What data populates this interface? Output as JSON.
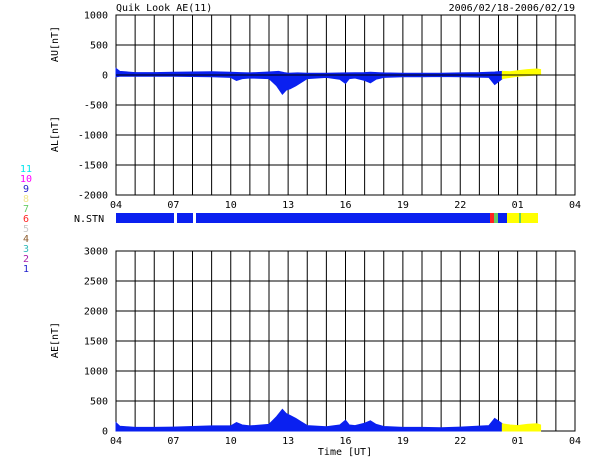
{
  "title": "Quik Look AE(11)",
  "date_range": "2006/02/18-2006/02/19",
  "station_label": "N.STN",
  "xlabel": "Time [UT]",
  "legend": {
    "entries": [
      {
        "label": "11",
        "color": "#00e5ee"
      },
      {
        "label": "10",
        "color": "#ff00ff"
      },
      {
        "label": "9",
        "color": "#2222cc"
      },
      {
        "label": "8",
        "color": "#f0e68c"
      },
      {
        "label": "7",
        "color": "#66cc66"
      },
      {
        "label": "6",
        "color": "#ff2222"
      },
      {
        "label": "5",
        "color": "#c8c8c8"
      },
      {
        "label": "4",
        "color": "#8b5a2b"
      },
      {
        "label": "3",
        "color": "#33bbbb"
      },
      {
        "label": "2",
        "color": "#aa22aa"
      },
      {
        "label": "1",
        "color": "#1e1ecc"
      }
    ]
  },
  "colors": {
    "main": "#0a20f0",
    "late": "#ffff00",
    "frame": "#000000"
  },
  "chart_data": [
    {
      "type": "area",
      "name": "AU/AL",
      "ylabel_top": "AU[nT]",
      "ylabel_bottom": "AL[nT]",
      "ylim": [
        -2000,
        1000
      ],
      "yticks": [
        1000,
        500,
        0,
        -500,
        -1000,
        -1500,
        -2000
      ],
      "xlim": [
        4,
        28
      ],
      "xticks": [
        "04",
        "07",
        "10",
        "13",
        "16",
        "19",
        "22",
        "01",
        "04"
      ],
      "series": [
        {
          "name": "AU",
          "x": [
            4.0,
            4.2,
            5,
            6,
            7,
            8,
            9,
            10,
            10.5,
            11,
            12,
            12.5,
            12.8,
            13,
            13.5,
            14,
            15,
            16,
            17,
            17.3,
            18,
            19,
            20,
            21,
            22,
            23,
            23.8,
            24.2,
            24.6,
            25,
            25.5,
            26,
            26.2
          ],
          "values": [
            110,
            60,
            40,
            40,
            45,
            50,
            55,
            45,
            40,
            35,
            50,
            60,
            40,
            30,
            35,
            30,
            30,
            35,
            40,
            45,
            35,
            30,
            30,
            30,
            35,
            40,
            50,
            60,
            55,
            70,
            90,
            100,
            90
          ]
        },
        {
          "name": "AL",
          "x": [
            4.0,
            4.2,
            5,
            6,
            7,
            8,
            9,
            10,
            10.3,
            10.6,
            11,
            12,
            12.4,
            12.7,
            12.9,
            13.1,
            13.4,
            13.7,
            14,
            15,
            15.7,
            16,
            16.2,
            16.5,
            17,
            17.3,
            17.6,
            18,
            19,
            20,
            21,
            22,
            23.5,
            23.8,
            24.2,
            24.6,
            25,
            25.5,
            26,
            26.2
          ],
          "values": [
            -30,
            -20,
            -20,
            -20,
            -20,
            -25,
            -30,
            -40,
            -90,
            -60,
            -50,
            -60,
            -180,
            -320,
            -250,
            -230,
            -180,
            -120,
            -60,
            -40,
            -70,
            -140,
            -60,
            -50,
            -90,
            -130,
            -70,
            -40,
            -30,
            -30,
            -25,
            -30,
            -40,
            -160,
            -60,
            -40,
            -20,
            -10,
            0,
            10
          ]
        }
      ]
    },
    {
      "type": "area",
      "name": "AE",
      "ylabel": "AE[nT]",
      "ylim": [
        0,
        3000
      ],
      "yticks": [
        3000,
        2500,
        2000,
        1500,
        1000,
        500,
        0
      ],
      "xlim": [
        4,
        28
      ],
      "xticks": [
        "04",
        "07",
        "10",
        "13",
        "16",
        "19",
        "22",
        "01",
        "04"
      ],
      "series": [
        {
          "name": "AE",
          "x": [
            4.0,
            4.2,
            5,
            6,
            7,
            8,
            9,
            10,
            10.3,
            10.6,
            11,
            12,
            12.4,
            12.7,
            12.9,
            13.1,
            13.4,
            13.7,
            14,
            15,
            15.7,
            16,
            16.2,
            16.5,
            17,
            17.3,
            17.6,
            18,
            19,
            20,
            21,
            22,
            23.5,
            23.8,
            24.2,
            24.6,
            25,
            25.5,
            26,
            26.2
          ],
          "values": [
            140,
            80,
            60,
            60,
            65,
            75,
            85,
            85,
            140,
            100,
            85,
            110,
            240,
            360,
            290,
            260,
            210,
            150,
            90,
            70,
            100,
            180,
            100,
            90,
            130,
            170,
            110,
            75,
            60,
            60,
            55,
            65,
            90,
            210,
            120,
            100,
            90,
            110,
            120,
            100
          ]
        }
      ]
    }
  ]
}
